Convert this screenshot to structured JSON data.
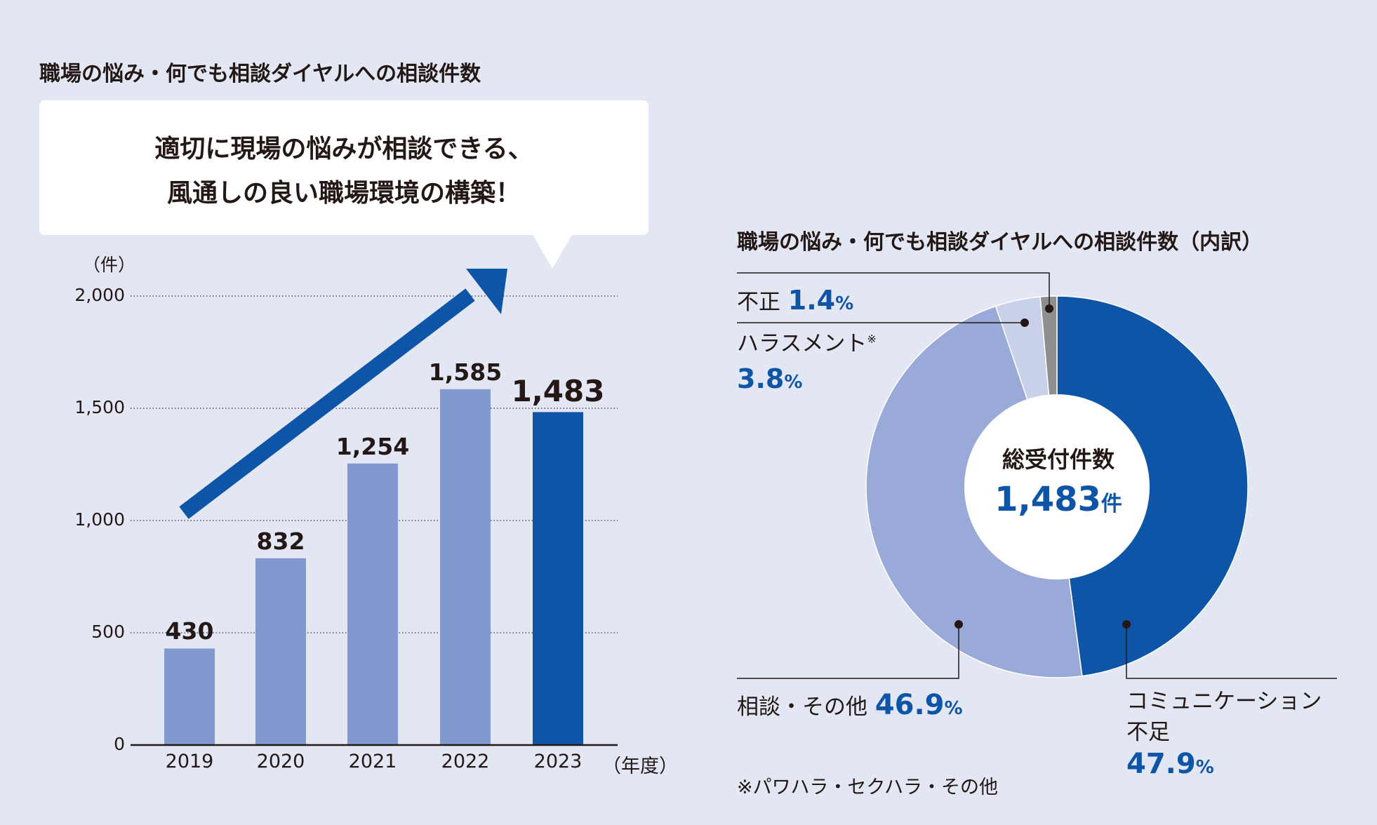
{
  "left_title": "職場の悩み・何でも相談ダイヤルへの相談件数",
  "callout": {
    "line1": "適切に現場の悩みが相談できる、",
    "line2": "風通しの良い職場環境の構築！"
  },
  "right_title": "職場の悩み・何でも相談ダイヤルへの相談件数（内訳）",
  "chart_data": [
    {
      "type": "bar",
      "ylabel": "（件）",
      "xlabel": "（年度）",
      "ylim": [
        0,
        2000
      ],
      "yticks": [
        0,
        500,
        1000,
        1500,
        2000
      ],
      "ytick_labels": [
        "0",
        "500",
        "1,000",
        "1,500",
        "2,000"
      ],
      "categories": [
        "2019",
        "2020",
        "2021",
        "2022",
        "2023"
      ],
      "values": [
        430,
        832,
        1254,
        1585,
        1483
      ],
      "value_labels": [
        "430",
        "832",
        "1,254",
        "1,585",
        "1,483"
      ],
      "grid": "horizontal dotted",
      "colors": {
        "bar": "#8299cf",
        "highlight_bar": "#0e55a8",
        "arrow": "#0e55a8"
      }
    },
    {
      "type": "pie",
      "donut": true,
      "center_label": "総受付件数",
      "center_value": "1,483",
      "center_unit": "件",
      "slices": [
        {
          "label": "コミュニケーション不足",
          "value": 47.9,
          "color": "#0e55a8"
        },
        {
          "label": "相談・その他",
          "value": 46.9,
          "color": "#9aaad8"
        },
        {
          "label": "ハラスメント",
          "value": 3.8,
          "color": "#c9d0ea"
        },
        {
          "label": "不正",
          "value": 1.4,
          "color": "#8e8e8e"
        }
      ]
    }
  ],
  "pie_labels": {
    "fusei": {
      "label": "不正",
      "pct": "1.4",
      "unit": "%"
    },
    "harassment": {
      "label": "ハラスメント",
      "mark": "※",
      "pct": "3.8",
      "unit": "%"
    },
    "consult": {
      "label": "相談・その他",
      "pct": "46.9",
      "unit": "%"
    },
    "comm": {
      "label1": "コミュニケーション",
      "label2": "不足",
      "pct": "47.9",
      "unit": "%"
    }
  },
  "footnote": "※パワハラ・セクハラ・その他"
}
